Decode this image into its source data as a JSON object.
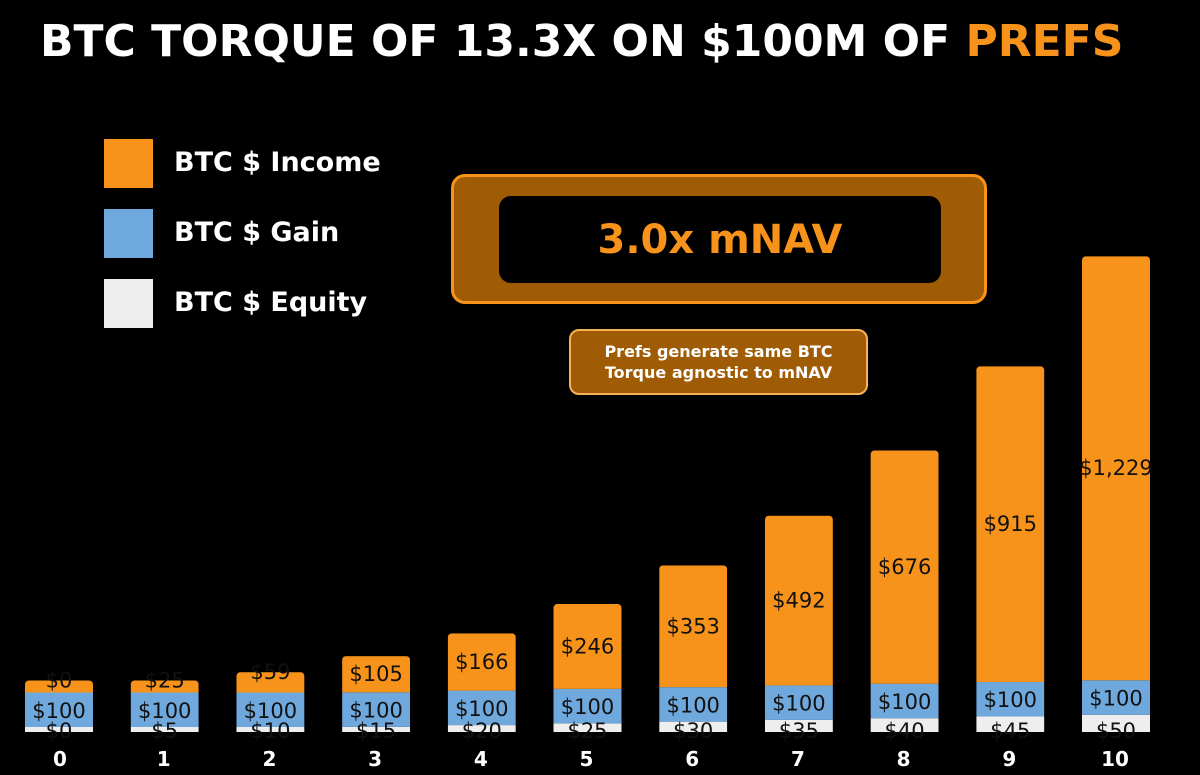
{
  "title": {
    "prefix": "BTC TORQUE OF 13.3X ON $100M OF ",
    "highlight": "PREFS"
  },
  "legend": [
    {
      "label": "BTC $ Income",
      "color": "#f7931a"
    },
    {
      "label": "BTC $ Gain",
      "color": "#6fa8dc"
    },
    {
      "label": "BTC $ Equity",
      "color": "#eeeeee"
    }
  ],
  "mnav_box": {
    "text": "3.0x mNAV"
  },
  "note": {
    "lines": [
      "Prefs generate same BTC",
      "Torque agnostic to mNAV"
    ]
  },
  "chart_data": {
    "type": "bar",
    "stacked": true,
    "categories": [
      "0",
      "1",
      "2",
      "3",
      "4",
      "5",
      "6",
      "7",
      "8",
      "9",
      "10"
    ],
    "series": [
      {
        "name": "BTC $ Equity",
        "color": "#eeeeee",
        "values": [
          0,
          5,
          10,
          15,
          20,
          25,
          30,
          35,
          40,
          45,
          50
        ],
        "labels": [
          "$0",
          "$5",
          "$10",
          "$15",
          "$20",
          "$25",
          "$30",
          "$35",
          "$40",
          "$45",
          "$50"
        ]
      },
      {
        "name": "BTC $ Gain",
        "color": "#6fa8dc",
        "values": [
          100,
          100,
          100,
          100,
          100,
          100,
          100,
          100,
          100,
          100,
          100
        ],
        "labels": [
          "$100",
          "$100",
          "$100",
          "$100",
          "$100",
          "$100",
          "$100",
          "$100",
          "$100",
          "$100",
          "$100"
        ]
      },
      {
        "name": "BTC $ Income",
        "color": "#f7931a",
        "values": [
          0,
          25,
          59,
          105,
          166,
          246,
          353,
          492,
          676,
          915,
          1229
        ],
        "labels": [
          "$0",
          "$25",
          "$59",
          "$105",
          "$166",
          "$246",
          "$353",
          "$492",
          "$676",
          "$915",
          "$1,229"
        ]
      }
    ],
    "ylim": [
      0,
      1400
    ],
    "grid": false
  }
}
